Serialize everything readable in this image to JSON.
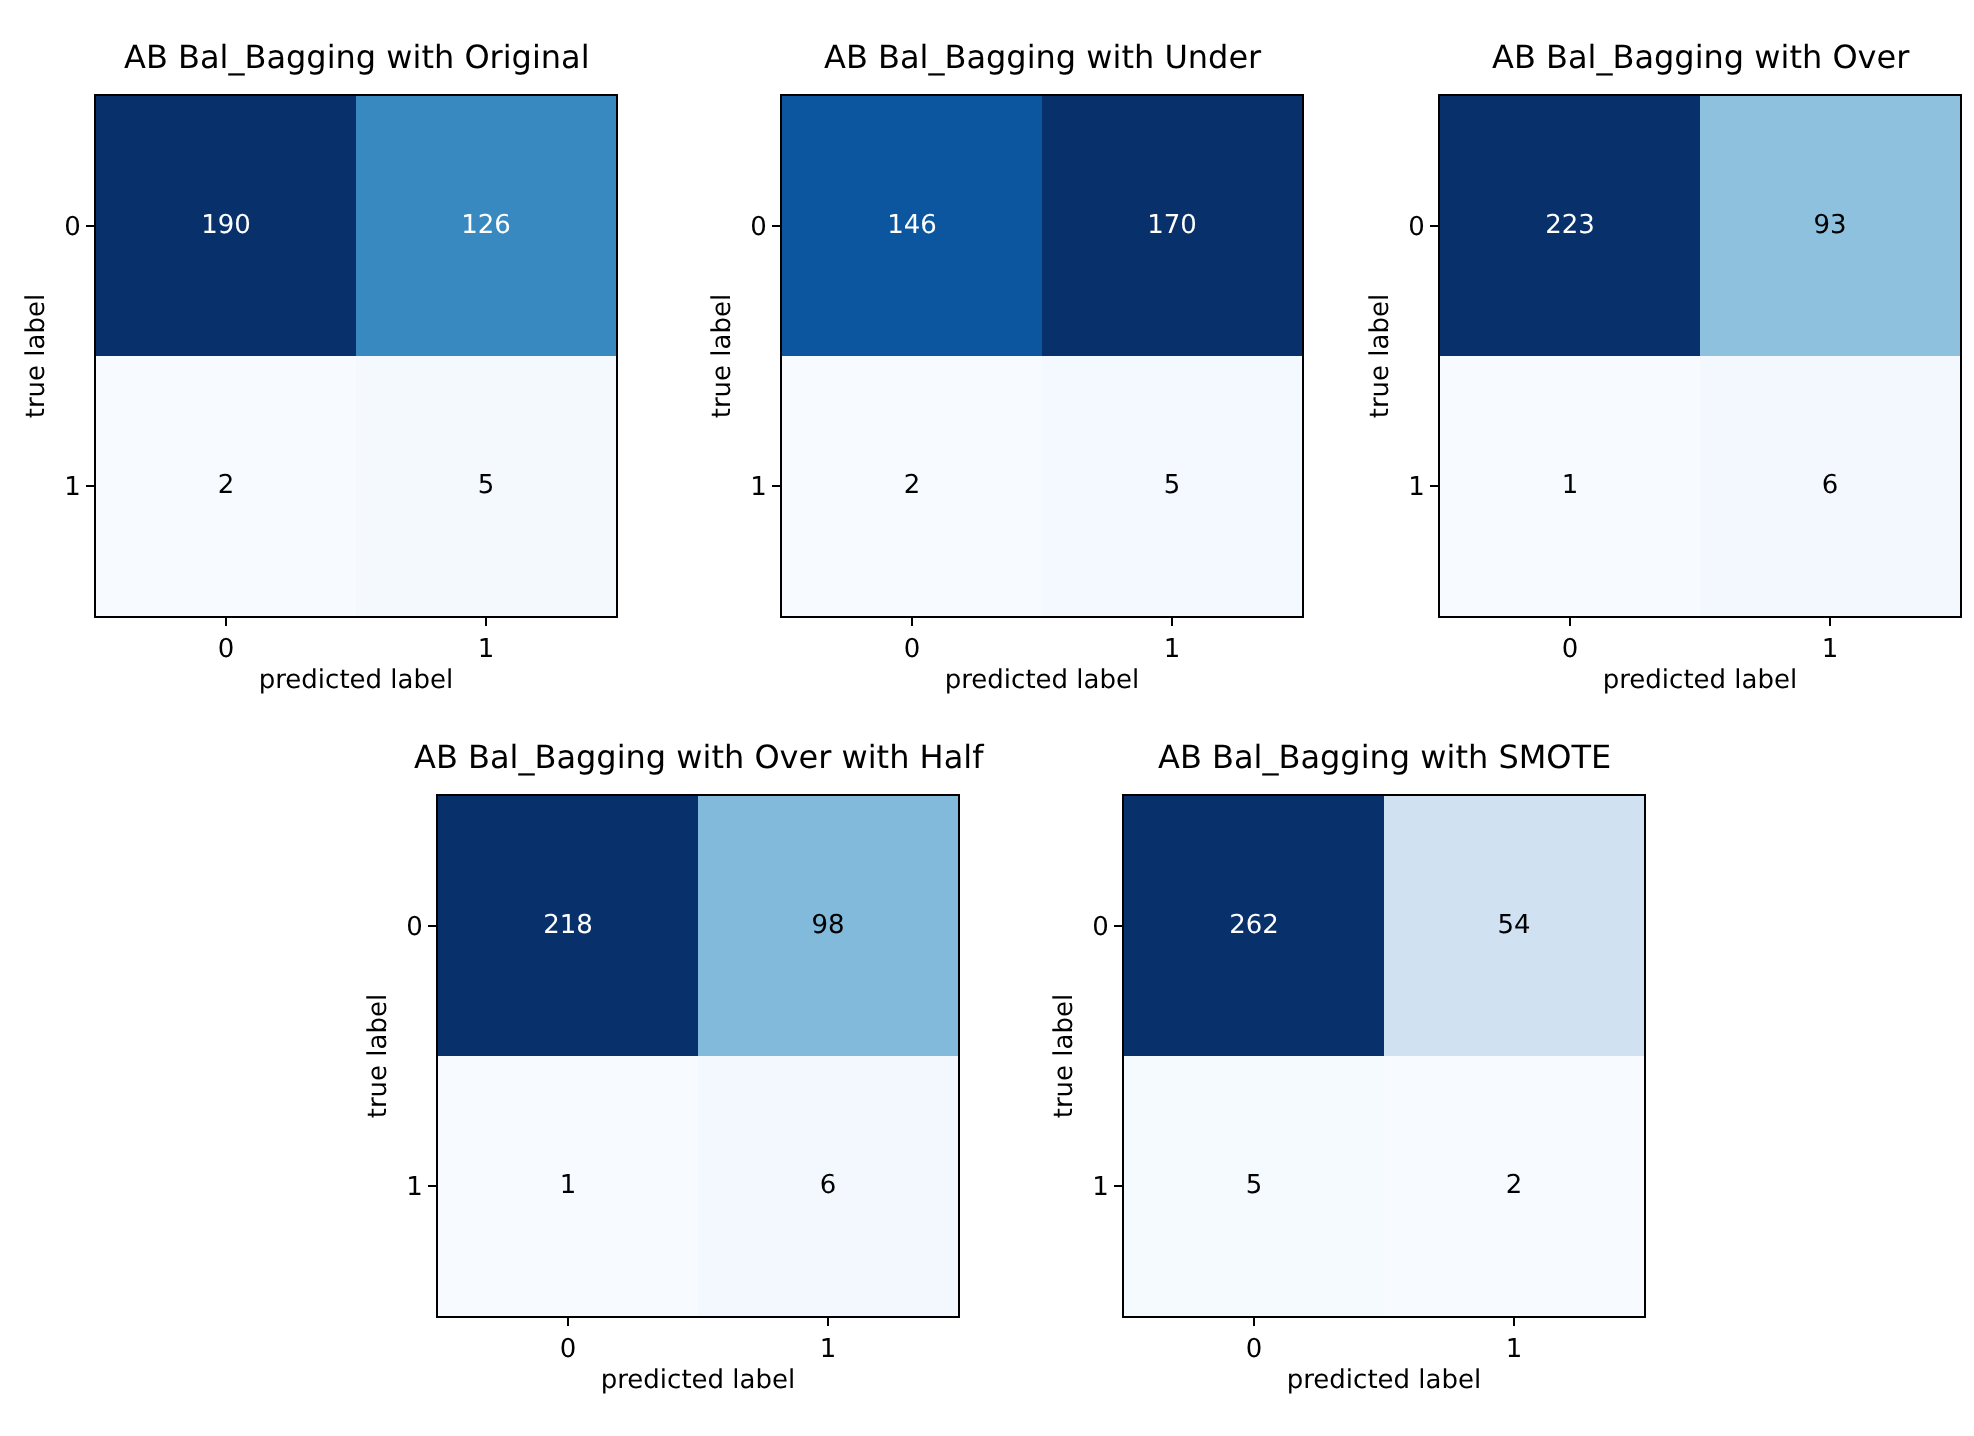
{
  "chart_data": [
    {
      "type": "heatmap",
      "title": "AB Bal_Bagging with Original",
      "xlabel": "predicted label",
      "ylabel": "true label",
      "categories": [
        "0",
        "1"
      ],
      "y_categories": [
        "0",
        "1"
      ],
      "cells": [
        [
          190,
          126
        ],
        [
          2,
          5
        ]
      ],
      "data_labels": true
    },
    {
      "type": "heatmap",
      "title": "AB Bal_Bagging with Under",
      "xlabel": "predicted label",
      "ylabel": "true label",
      "categories": [
        "0",
        "1"
      ],
      "y_categories": [
        "0",
        "1"
      ],
      "cells": [
        [
          146,
          170
        ],
        [
          2,
          5
        ]
      ],
      "data_labels": true
    },
    {
      "type": "heatmap",
      "title": "AB Bal_Bagging with Over",
      "xlabel": "predicted label",
      "ylabel": "true label",
      "categories": [
        "0",
        "1"
      ],
      "y_categories": [
        "0",
        "1"
      ],
      "cells": [
        [
          223,
          93
        ],
        [
          1,
          6
        ]
      ],
      "data_labels": true
    },
    {
      "type": "heatmap",
      "title": "AB Bal_Bagging with Over with Half",
      "xlabel": "predicted label",
      "ylabel": "true label",
      "categories": [
        "0",
        "1"
      ],
      "y_categories": [
        "0",
        "1"
      ],
      "cells": [
        [
          218,
          98
        ],
        [
          1,
          6
        ]
      ],
      "data_labels": true
    },
    {
      "type": "heatmap",
      "title": "AB Bal_Bagging with SMOTE",
      "xlabel": "predicted label",
      "ylabel": "true label",
      "categories": [
        "0",
        "1"
      ],
      "y_categories": [
        "0",
        "1"
      ],
      "cells": [
        [
          262,
          54
        ],
        [
          5,
          2
        ]
      ],
      "data_labels": true
    }
  ]
}
